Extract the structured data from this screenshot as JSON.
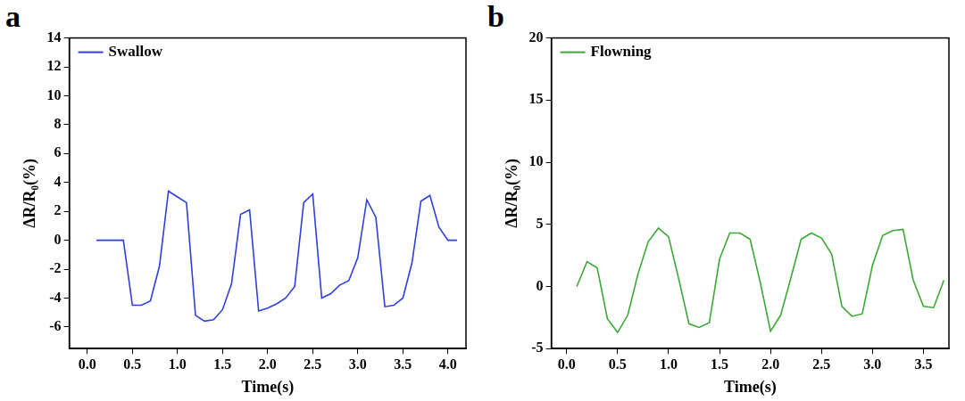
{
  "chart_data": [
    {
      "type": "line",
      "title": "a",
      "y_label": "ΔR/R₀(%)",
      "x_label": "Time(s)",
      "x": [
        0.1,
        0.2,
        0.3,
        0.4,
        0.5,
        0.6,
        0.7,
        0.8,
        0.9,
        1.0,
        1.1,
        1.2,
        1.3,
        1.4,
        1.5,
        1.6,
        1.7,
        1.8,
        1.9,
        2.0,
        2.1,
        2.2,
        2.3,
        2.4,
        2.5,
        2.6,
        2.7,
        2.8,
        2.9,
        3.0,
        3.1,
        3.2,
        3.3,
        3.4,
        3.5,
        3.6,
        3.7,
        3.8,
        3.9,
        4.0,
        4.1
      ],
      "series": [
        {
          "name": "Swallow",
          "color": "#2e3fe0",
          "values": [
            0,
            0,
            0,
            0,
            -4.5,
            -4.5,
            -4.2,
            -1.8,
            3.4,
            3.0,
            2.6,
            -5.2,
            -5.6,
            -5.5,
            -4.8,
            -3.0,
            1.8,
            2.1,
            -4.9,
            -4.7,
            -4.4,
            -4.0,
            -3.2,
            2.6,
            3.2,
            -4.0,
            -3.7,
            -3.1,
            -2.8,
            -1.2,
            2.8,
            1.6,
            -4.6,
            -4.5,
            -4.0,
            -1.6,
            2.7,
            3.1,
            0.9,
            0,
            0
          ]
        }
      ],
      "xlim": [
        -0.2,
        4.2
      ],
      "xticks": [
        {
          "value": 0,
          "label": "0.0"
        },
        {
          "value": 0.5,
          "label": "0.5"
        },
        {
          "value": 1,
          "label": "1.0"
        },
        {
          "value": 1.5,
          "label": "1.5"
        },
        {
          "value": 2,
          "label": "2.0"
        },
        {
          "value": 2.5,
          "label": "2.5"
        },
        {
          "value": 3,
          "label": "3.0"
        },
        {
          "value": 3.5,
          "label": "3.5"
        },
        {
          "value": 4,
          "label": "4.0"
        }
      ],
      "ylim": [
        -7.5,
        14
      ],
      "yticks": [
        -6,
        -4,
        -2,
        0,
        2,
        4,
        6,
        8,
        10,
        12,
        14
      ],
      "grid": false,
      "legend": "upper left"
    },
    {
      "type": "line",
      "title": "b",
      "y_label": "ΔR/R₀(%)",
      "x_label": "Time(s)",
      "x": [
        0.1,
        0.2,
        0.3,
        0.4,
        0.5,
        0.6,
        0.7,
        0.8,
        0.9,
        1.0,
        1.1,
        1.2,
        1.3,
        1.4,
        1.5,
        1.6,
        1.7,
        1.8,
        1.9,
        2.0,
        2.1,
        2.2,
        2.3,
        2.4,
        2.5,
        2.6,
        2.7,
        2.8,
        2.9,
        3.0,
        3.1,
        3.2,
        3.3,
        3.4,
        3.5,
        3.6,
        3.7
      ],
      "series": [
        {
          "name": "Flowning",
          "color": "#3aa935",
          "values": [
            0,
            2.0,
            1.5,
            -2.6,
            -3.7,
            -2.3,
            1.0,
            3.6,
            4.7,
            4.0,
            0.6,
            -3.0,
            -3.3,
            -2.9,
            2.2,
            4.3,
            4.3,
            3.8,
            0.3,
            -3.6,
            -2.3,
            0.7,
            3.8,
            4.3,
            3.9,
            2.6,
            -1.6,
            -2.4,
            -2.2,
            1.7,
            4.1,
            4.5,
            4.6,
            0.5,
            -1.6,
            -1.7,
            0.5
          ]
        }
      ],
      "xlim": [
        -0.15,
        3.75
      ],
      "xticks": [
        {
          "value": 0,
          "label": "0.0"
        },
        {
          "value": 0.5,
          "label": "0.5"
        },
        {
          "value": 1,
          "label": "1.0"
        },
        {
          "value": 1.5,
          "label": "1.5"
        },
        {
          "value": 2,
          "label": "2.0"
        },
        {
          "value": 2.5,
          "label": "2.5"
        },
        {
          "value": 3,
          "label": "3.0"
        },
        {
          "value": 3.5,
          "label": "3.5"
        }
      ],
      "ylim": [
        -5,
        20
      ],
      "yticks": [
        -5,
        0,
        5,
        10,
        15,
        20
      ],
      "grid": false,
      "legend": "upper left"
    }
  ]
}
